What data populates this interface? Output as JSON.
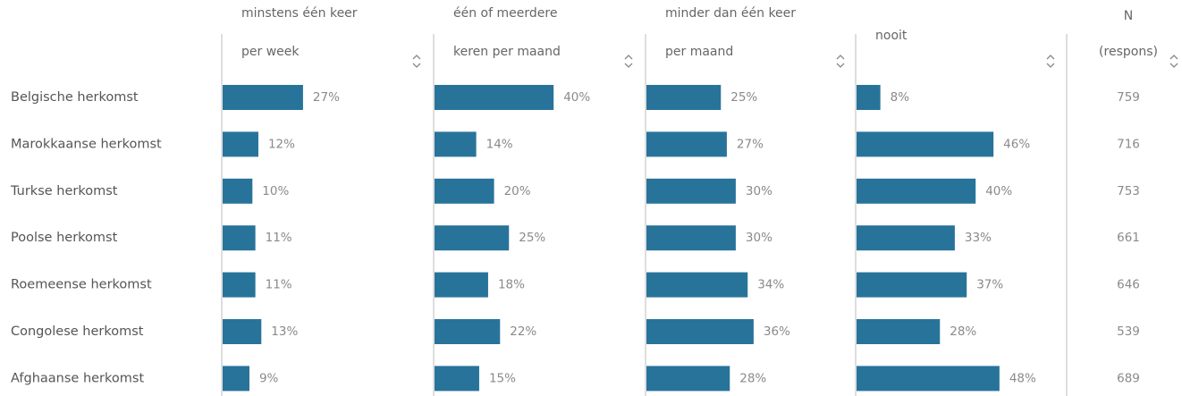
{
  "chart_data": {
    "type": "table_bar",
    "categories": [
      "Belgische herkomst",
      "Marokkaanse herkomst",
      "Turkse herkomst",
      "Poolse herkomst",
      "Roemeense herkomst",
      "Congolese herkomst",
      "Afghaanse herkomst"
    ],
    "color": "#28739a",
    "xlim": [
      0,
      100
    ],
    "series": [
      {
        "name": [
          "minstens één keer",
          "per week"
        ],
        "values": [
          27,
          12,
          10,
          11,
          11,
          13,
          9
        ],
        "value_labels": [
          "27%",
          "12%",
          "10%",
          "11%",
          "11%",
          "13%",
          "9%"
        ]
      },
      {
        "name": [
          "één of meerdere",
          "keren per maand"
        ],
        "values": [
          40,
          14,
          20,
          25,
          18,
          22,
          15
        ],
        "value_labels": [
          "40%",
          "14%",
          "20%",
          "25%",
          "18%",
          "22%",
          "15%"
        ]
      },
      {
        "name": [
          "minder dan één keer",
          "per maand"
        ],
        "values": [
          25,
          27,
          30,
          30,
          34,
          36,
          28
        ],
        "value_labels": [
          "25%",
          "27%",
          "30%",
          "30%",
          "34%",
          "36%",
          "28%"
        ]
      },
      {
        "name": [
          "nooit"
        ],
        "values": [
          8,
          46,
          40,
          33,
          37,
          28,
          48
        ],
        "value_labels": [
          "8%",
          "46%",
          "40%",
          "33%",
          "37%",
          "28%",
          "48%"
        ]
      }
    ],
    "n": {
      "name": [
        "N",
        "(respons)"
      ],
      "values": [
        759,
        716,
        753,
        661,
        646,
        539,
        689
      ]
    }
  }
}
